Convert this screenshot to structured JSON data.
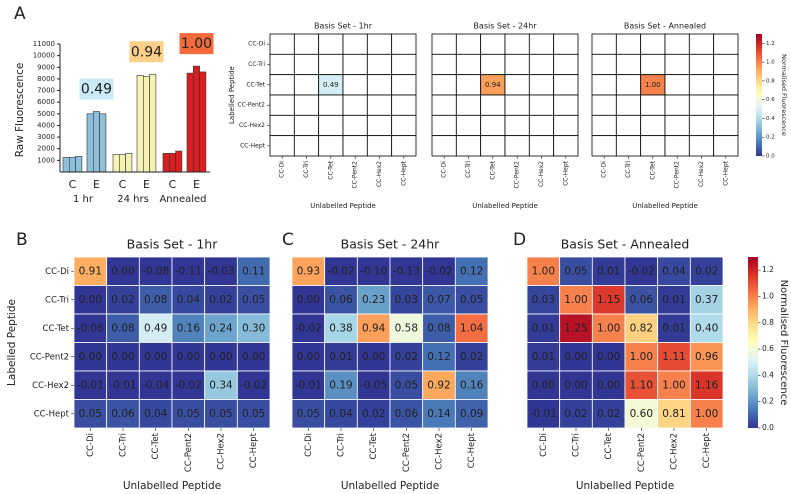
{
  "chart_data": [
    {
      "type": "bar",
      "panel": "A",
      "ylabel": "Raw Fluorescence",
      "ylim": [
        0,
        11000
      ],
      "yticks": [
        1000,
        2000,
        3000,
        4000,
        5000,
        6000,
        7000,
        8000,
        9000,
        10000,
        11000
      ],
      "edge_color": "#333333",
      "groups": [
        {
          "name": "1 hr",
          "color": "#8fc0db",
          "categories": [
            "C",
            "E"
          ],
          "values": [
            [
              1250,
              1250,
              1350
            ],
            [
              5000,
              5200,
              5000
            ]
          ],
          "label": "0.49",
          "label_color": "#c8e9f5",
          "label_text_color": "#000000"
        },
        {
          "name": "24 hrs",
          "color": "#f6f2b4",
          "categories": [
            "C",
            "E"
          ],
          "values": [
            [
              1500,
              1500,
              1600
            ],
            [
              8300,
              8200,
              8400
            ]
          ],
          "label": "0.94",
          "label_color": "#fdd08a",
          "label_text_color": "#000000"
        },
        {
          "name": "Annealed",
          "color": "#d81e1e",
          "categories": [
            "C",
            "E"
          ],
          "values": [
            [
              1600,
              1600,
              1800
            ],
            [
              8500,
              9100,
              8600
            ]
          ],
          "label": "1.00",
          "label_color": "#f36b3d",
          "label_text_color": "#ffffff"
        }
      ]
    },
    {
      "type": "heatmap",
      "title": "Basis Set - 1hr",
      "ylabel": "Labelled Peptide",
      "xlabel": "Unlabelled Peptide",
      "grid_color": "#000000",
      "rows": [
        "CC-Di",
        "CC-Tri",
        "CC-Tet",
        "CC-Pent2",
        "CC-Hex2",
        "CC-Hept"
      ],
      "columns": [
        "CC-Di",
        "CC-Tri",
        "CC-Tet",
        "CC-Pent2",
        "CC-Hex2",
        "CC-Hept"
      ],
      "values": [
        [
          null,
          null,
          null,
          null,
          null,
          null
        ],
        [
          null,
          null,
          null,
          null,
          null,
          null
        ],
        [
          null,
          null,
          0.49,
          null,
          null,
          null
        ],
        [
          null,
          null,
          null,
          null,
          null,
          null
        ],
        [
          null,
          null,
          null,
          null,
          null,
          null
        ],
        [
          null,
          null,
          null,
          null,
          null,
          null
        ]
      ],
      "value_labels": [
        [
          null,
          null,
          null,
          null,
          null,
          null
        ],
        [
          null,
          null,
          null,
          null,
          null,
          null
        ],
        [
          null,
          null,
          "0.49",
          null,
          null,
          null
        ],
        [
          null,
          null,
          null,
          null,
          null,
          null
        ],
        [
          null,
          null,
          null,
          null,
          null,
          null
        ],
        [
          null,
          null,
          null,
          null,
          null,
          null
        ]
      ]
    },
    {
      "type": "heatmap",
      "title": "Basis Set - 24hr",
      "xlabel": "Unlabelled Peptide",
      "grid_color": "#000000",
      "columns": [
        "CC-Di",
        "CC-Tri",
        "CC-Tet",
        "CC-Pent2",
        "CC-Hex2",
        "CC-Hept"
      ],
      "values": [
        [
          null,
          null,
          null,
          null,
          null,
          null
        ],
        [
          null,
          null,
          null,
          null,
          null,
          null
        ],
        [
          null,
          null,
          0.94,
          null,
          null,
          null
        ],
        [
          null,
          null,
          null,
          null,
          null,
          null
        ],
        [
          null,
          null,
          null,
          null,
          null,
          null
        ],
        [
          null,
          null,
          null,
          null,
          null,
          null
        ]
      ],
      "value_labels": [
        [
          null,
          null,
          null,
          null,
          null,
          null
        ],
        [
          null,
          null,
          null,
          null,
          null,
          null
        ],
        [
          null,
          null,
          "0.94",
          null,
          null,
          null
        ],
        [
          null,
          null,
          null,
          null,
          null,
          null
        ],
        [
          null,
          null,
          null,
          null,
          null,
          null
        ],
        [
          null,
          null,
          null,
          null,
          null,
          null
        ]
      ]
    },
    {
      "type": "heatmap",
      "title": "Basis Set - Annealed",
      "xlabel": "Unlabelled Peptide",
      "grid_color": "#000000",
      "columns": [
        "CC-Di",
        "CC-Tri",
        "CC-Tet",
        "CC-Pent2",
        "CC-Hex2",
        "CC-Hept"
      ],
      "values": [
        [
          null,
          null,
          null,
          null,
          null,
          null
        ],
        [
          null,
          null,
          null,
          null,
          null,
          null
        ],
        [
          null,
          null,
          1.0,
          null,
          null,
          null
        ],
        [
          null,
          null,
          null,
          null,
          null,
          null
        ],
        [
          null,
          null,
          null,
          null,
          null,
          null
        ],
        [
          null,
          null,
          null,
          null,
          null,
          null
        ]
      ],
      "value_labels": [
        [
          null,
          null,
          null,
          null,
          null,
          null
        ],
        [
          null,
          null,
          null,
          null,
          null,
          null
        ],
        [
          null,
          null,
          "1.00",
          null,
          null,
          null
        ],
        [
          null,
          null,
          null,
          null,
          null,
          null
        ],
        [
          null,
          null,
          null,
          null,
          null,
          null
        ],
        [
          null,
          null,
          null,
          null,
          null,
          null
        ]
      ],
      "colorbar": {
        "label": "Normalised Fluorescence",
        "colormap": "RdYlBu_r",
        "clim": [
          0,
          1.3
        ],
        "ticks": [
          {
            "value": 0,
            "label": "0.0"
          },
          0.2,
          0.4,
          0.6,
          0.8,
          {
            "value": 1,
            "label": "1.0"
          },
          1.2
        ]
      }
    },
    {
      "type": "heatmap",
      "panel": "B",
      "title": "Basis Set - 1hr",
      "ylabel": "Labelled Peptide",
      "xlabel": "Unlabelled Peptide",
      "grid_color": "#ffffff",
      "rows": [
        "CC-Di",
        "CC-Tri",
        "CC-Tet",
        "CC-Pent2",
        "CC-Hex2",
        "CC-Hept"
      ],
      "columns": [
        "CC-Di",
        "CC-Tri",
        "CC-Tet",
        "CC-Pent2",
        "CC-Hex2",
        "CC-Hept"
      ],
      "values": [
        [
          0.91,
          0,
          -0.08,
          -0.11,
          -0.03,
          0.11
        ],
        [
          0,
          0.02,
          0.08,
          0.04,
          0.02,
          0.05
        ],
        [
          -0.06,
          0.08,
          0.49,
          0.16,
          0.24,
          0.3
        ],
        [
          0,
          0,
          0,
          0,
          0,
          0
        ],
        [
          -0.01,
          -0.01,
          -0.04,
          -0.02,
          0.34,
          -0.02
        ],
        [
          0.05,
          0.06,
          0.04,
          0.05,
          0.05,
          0.05
        ]
      ],
      "value_labels": [
        [
          "0.91",
          "0.00",
          "-0.08",
          "-0.11",
          "-0.03",
          "0.11"
        ],
        [
          "0.00",
          "0.02",
          "0.08",
          "0.04",
          "0.02",
          "0.05"
        ],
        [
          "-0.06",
          "0.08",
          "0.49",
          "0.16",
          "0.24",
          "0.30"
        ],
        [
          "0.00",
          "0.00",
          "0.00",
          "0.00",
          "0.00",
          "0.00"
        ],
        [
          "-0.01",
          "-0.01",
          "-0.04",
          "-0.02",
          "0.34",
          "-0.02"
        ],
        [
          "0.05",
          "0.06",
          "0.04",
          "0.05",
          "0.05",
          "0.05"
        ]
      ]
    },
    {
      "type": "heatmap",
      "panel": "C",
      "title": "Basis Set - 24hr",
      "xlabel": "Unlabelled Peptide",
      "grid_color": "#ffffff",
      "columns": [
        "CC-Di",
        "CC-Tri",
        "CC-Tet",
        "CC-Pent2",
        "CC-Hex2",
        "CC-Hept"
      ],
      "values": [
        [
          0.93,
          -0.02,
          -0.1,
          -0.13,
          -0.02,
          0.12
        ],
        [
          0,
          0.06,
          0.23,
          0.03,
          0.07,
          0.05
        ],
        [
          -0.02,
          0.38,
          0.94,
          0.58,
          0.08,
          1.04
        ],
        [
          0,
          0.01,
          0,
          0.02,
          0.12,
          0.02
        ],
        [
          -0.01,
          0.19,
          -0.05,
          0.05,
          0.92,
          0.16
        ],
        [
          0.05,
          0.04,
          0.02,
          0.06,
          0.14,
          0.09
        ]
      ],
      "value_labels": [
        [
          "0.93",
          "-0.02",
          "-0.10",
          "-0.13",
          "-0.02",
          "0.12"
        ],
        [
          "0.00",
          "0.06",
          "0.23",
          "0.03",
          "0.07",
          "0.05"
        ],
        [
          "-0.02",
          "0.38",
          "0.94",
          "0.58",
          "0.08",
          "1.04"
        ],
        [
          "0.00",
          "0.01",
          "0.00",
          "0.02",
          "0.12",
          "0.02"
        ],
        [
          "-0.01",
          "0.19",
          "-0.05",
          "0.05",
          "0.92",
          "0.16"
        ],
        [
          "0.05",
          "0.04",
          "0.02",
          "0.06",
          "0.14",
          "0.09"
        ]
      ]
    },
    {
      "type": "heatmap",
      "panel": "D",
      "title": "Basis Set - Annealed",
      "xlabel": "Unlabelled Peptide",
      "grid_color": "#ffffff",
      "columns": [
        "CC-Di",
        "CC-Tri",
        "CC-Tet",
        "CC-Pent2",
        "CC-Hex2",
        "CC-Hept"
      ],
      "values": [
        [
          1.0,
          0.05,
          0.01,
          -0.02,
          0.04,
          0.02
        ],
        [
          0.03,
          1.0,
          1.15,
          0.06,
          0.01,
          0.37
        ],
        [
          0.01,
          1.25,
          1.0,
          0.82,
          0.01,
          0.4
        ],
        [
          0.01,
          0,
          0,
          1.0,
          1.11,
          0.96
        ],
        [
          0,
          0,
          0,
          1.1,
          1.0,
          1.16
        ],
        [
          -0.01,
          0.02,
          0.02,
          0.6,
          0.81,
          1.0
        ]
      ],
      "value_labels": [
        [
          "1.00",
          "0.05",
          "0.01",
          "-0.02",
          "0.04",
          "0.02"
        ],
        [
          "0.03",
          "1.00",
          "1.15",
          "0.06",
          "0.01",
          "0.37"
        ],
        [
          "0.01",
          "1.25",
          "1.00",
          "0.82",
          "0.01",
          "0.40"
        ],
        [
          "0.01",
          "0.00",
          "0.00",
          "1.00",
          "1.11",
          "0.96"
        ],
        [
          "0.00",
          "0.00",
          "0.00",
          "1.10",
          "1.00",
          "1.16"
        ],
        [
          "-0.01",
          "0.02",
          "0.02",
          "0.60",
          "0.81",
          "1.00"
        ]
      ],
      "colorbar": {
        "label": "Normalised Fluorescence",
        "colormap": "RdYlBu_r",
        "clim": [
          0,
          1.3
        ],
        "ticks": [
          {
            "value": 0,
            "label": "0.0"
          },
          0.2,
          0.4,
          0.6,
          0.8,
          {
            "value": 1,
            "label": "1.0"
          },
          1.2
        ]
      }
    }
  ]
}
